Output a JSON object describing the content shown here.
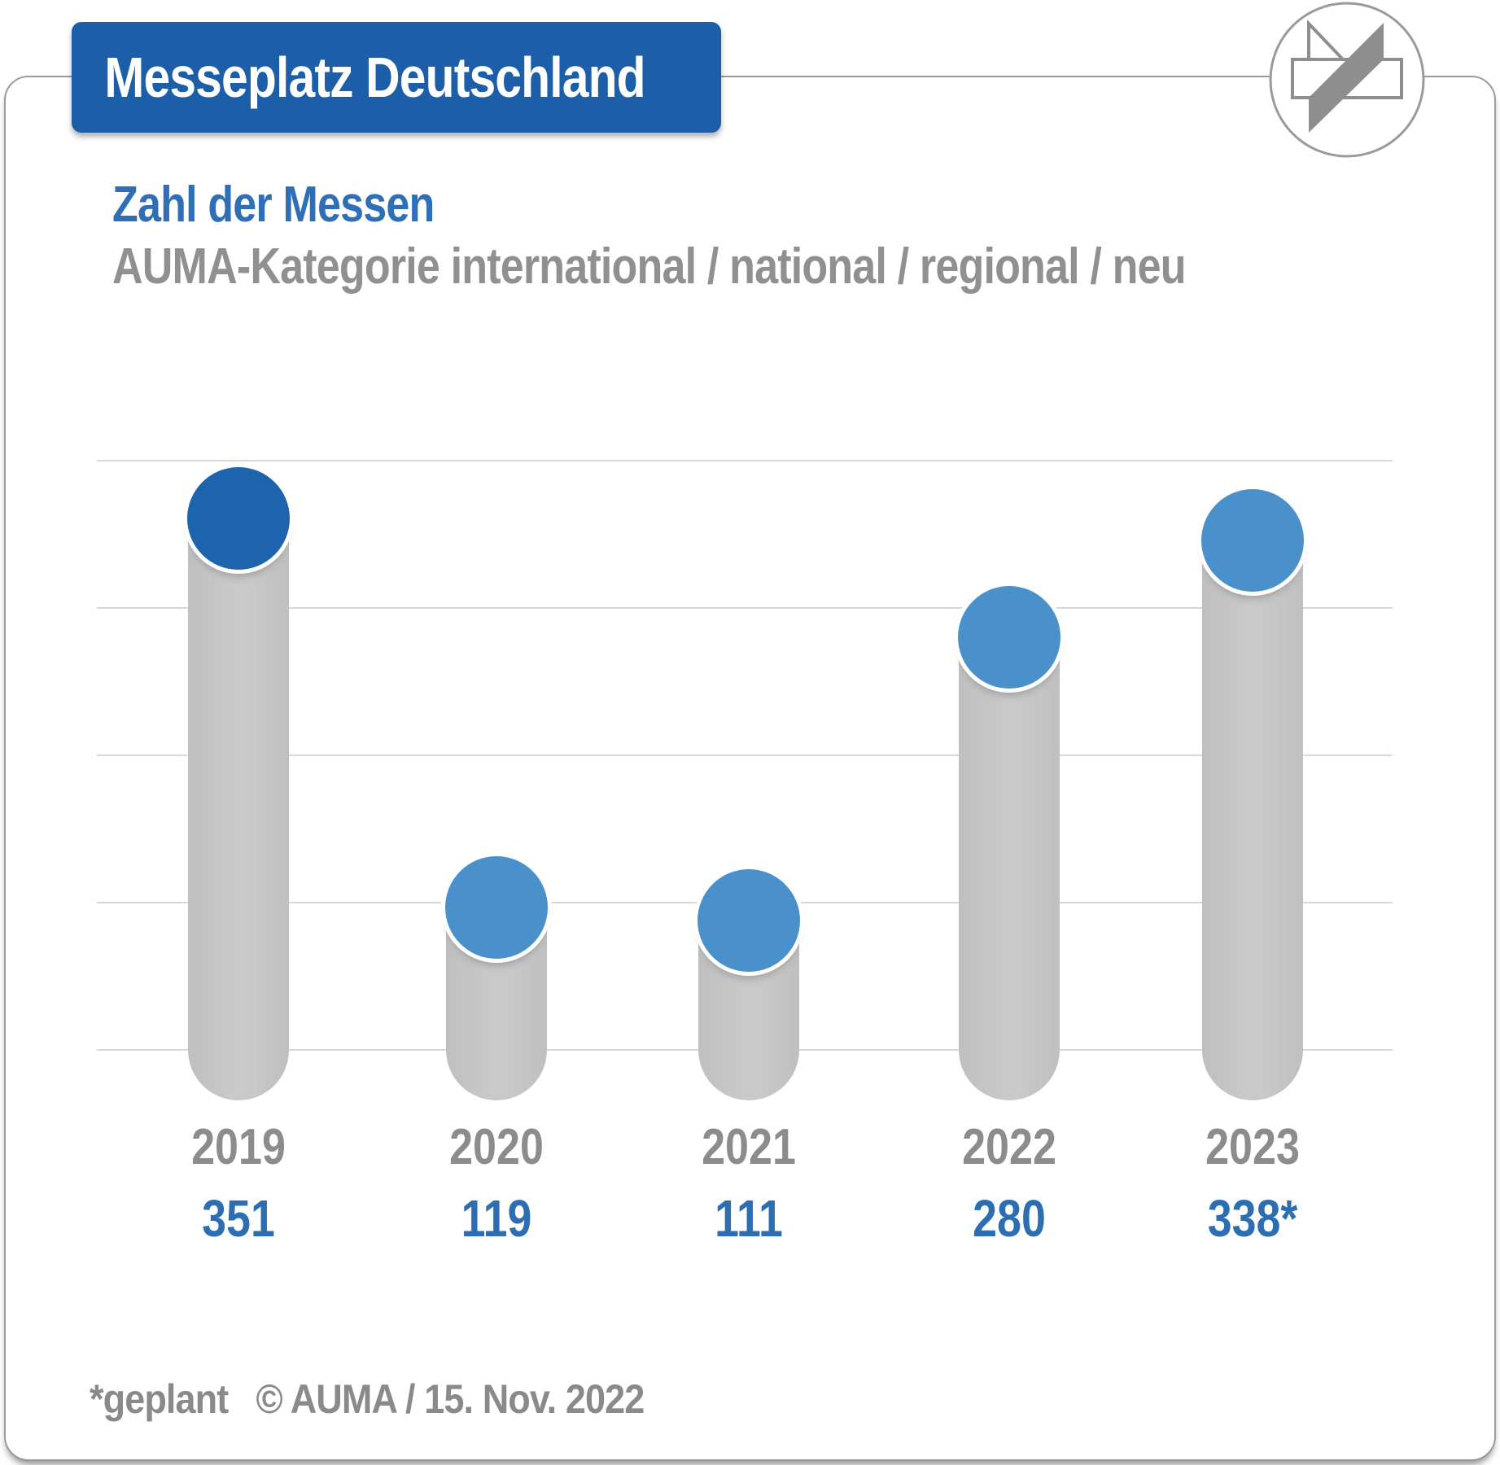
{
  "header": {
    "title": "Messeplatz Deutschland"
  },
  "subtitle": {
    "line1": "Zahl der Messen",
    "line2": "AUMA-Kategorie international / national / regional / neu"
  },
  "footer": {
    "note": "*geplant",
    "copyright": "© AUMA / 15. Nov. 2022"
  },
  "colors": {
    "banner_bg": "#1c5fa8",
    "banner_text": "#ffffff",
    "subtitle_blue": "#2e6fb7",
    "subtitle_gray": "#909090",
    "bar_gray": "#c5c5c5",
    "gridline": "#d8d8d8",
    "year_label": "#8c8c8c",
    "value_label": "#2d6eb3",
    "footer_gray": "#8a8a8a",
    "card_border": "#9b9b9b",
    "logo_gray": "#8e8e8e",
    "point_dark_blue": "#1d64ad",
    "point_light_blue": "#4a90cb"
  },
  "chart_data": {
    "type": "bar",
    "title": "Zahl der Messen",
    "subtitle": "AUMA-Kategorie international / national / regional / neu",
    "categories": [
      "2019",
      "2020",
      "2021",
      "2022",
      "2023"
    ],
    "values": [
      351,
      119,
      111,
      280,
      338
    ],
    "value_labels": [
      "351",
      "119",
      "111",
      "280",
      "338*"
    ],
    "point_colors": [
      "#1d64ad",
      "#4a90cb",
      "#4a90cb",
      "#4a90cb",
      "#4a90cb"
    ],
    "highlighted_category": "2019",
    "footnote": "*geplant",
    "xlabel": "",
    "ylabel": "",
    "ylim": [
      0,
      400
    ],
    "y_tick_labels_shown": false,
    "grid": true,
    "gridline_count": 5,
    "legend": false
  }
}
